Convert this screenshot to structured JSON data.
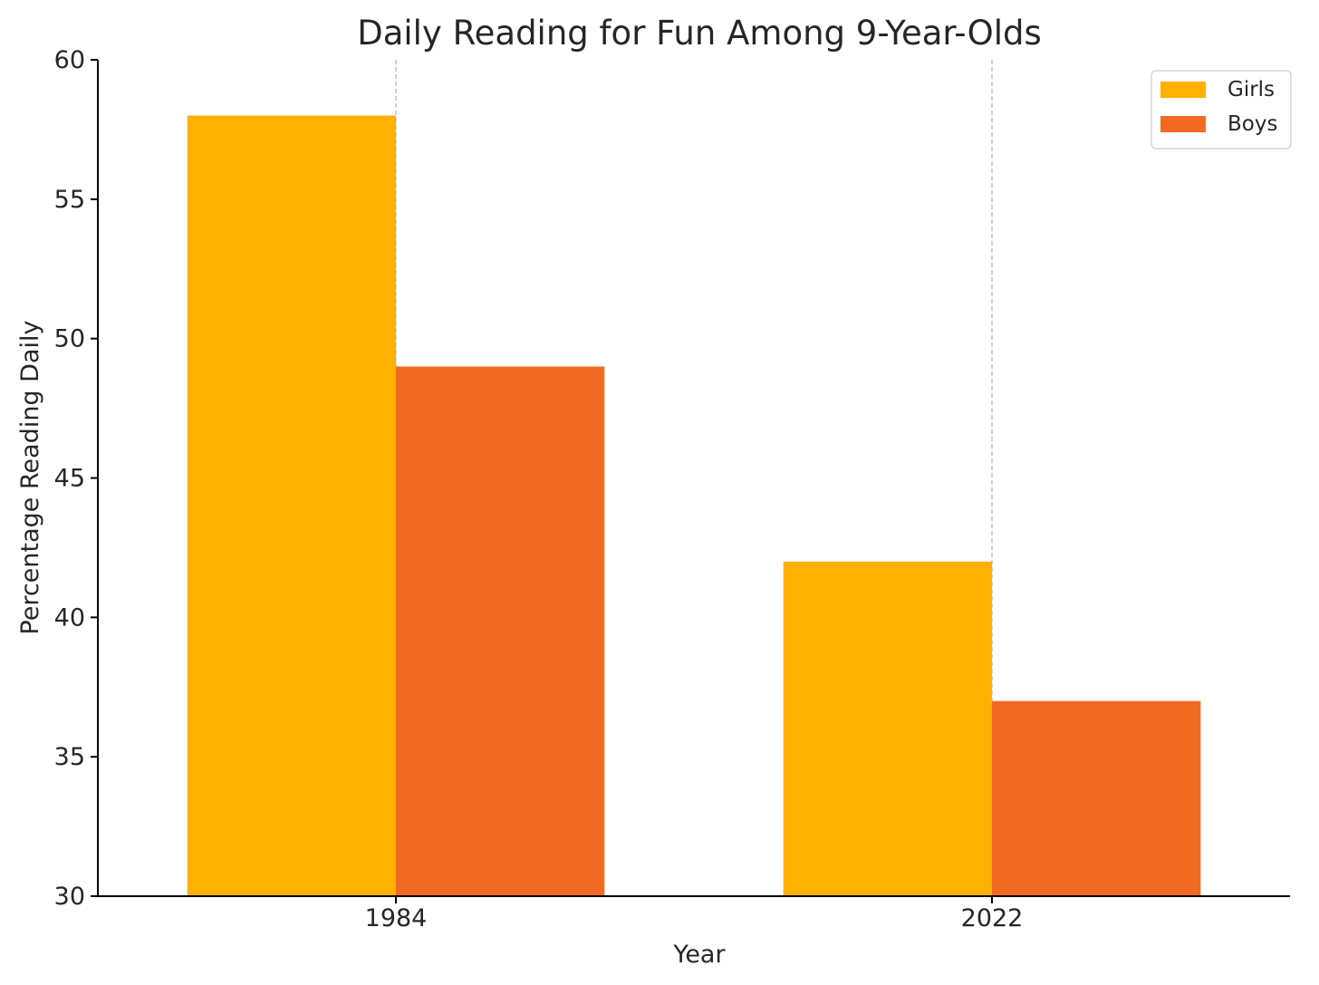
{
  "chart_data": {
    "type": "bar",
    "title": "Daily Reading for Fun Among 9-Year-Olds",
    "xlabel": "Year",
    "ylabel": "Percentage Reading Daily",
    "categories": [
      "1984",
      "2022"
    ],
    "series": [
      {
        "name": "Girls",
        "values": [
          58,
          42
        ],
        "color": "#FFB000"
      },
      {
        "name": "Boys",
        "values": [
          49,
          37
        ],
        "color": "#F26A22"
      }
    ],
    "ylim": [
      30,
      60
    ],
    "yticks": [
      30,
      35,
      40,
      45,
      50,
      55,
      60
    ],
    "grid": "vertical dashed lines at category positions",
    "legend": "top-right"
  }
}
